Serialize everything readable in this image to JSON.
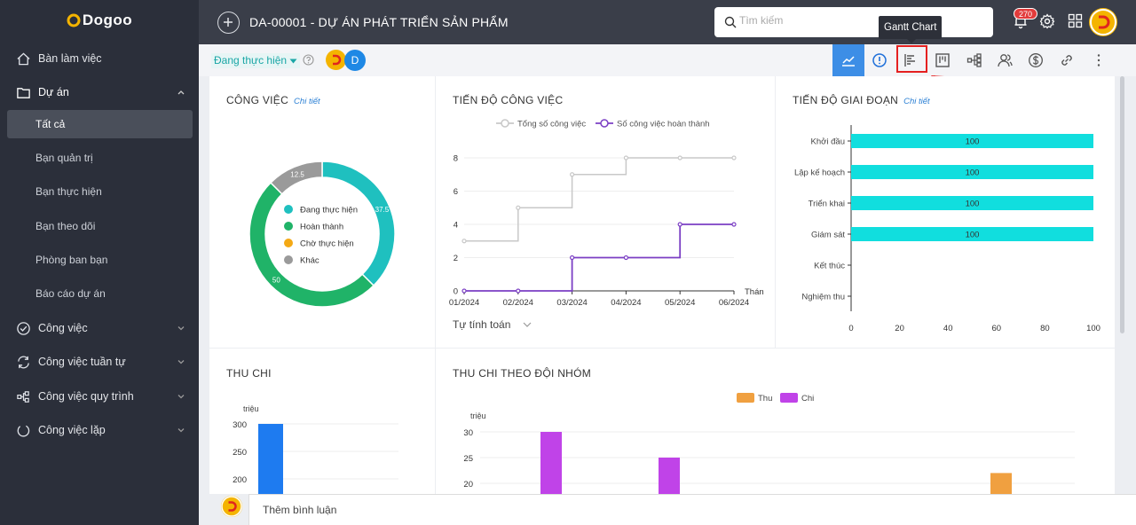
{
  "app": {
    "logo": "Dogoo"
  },
  "sidebar": {
    "items": [
      {
        "label": "Bàn làm việc",
        "icon": "home-icon"
      },
      {
        "label": "Dự án",
        "icon": "folder-icon"
      },
      {
        "label": "Công việc",
        "icon": "check-circle-icon"
      },
      {
        "label": "Công việc tuần tự",
        "icon": "sync-icon"
      },
      {
        "label": "Công việc quy trình",
        "icon": "workflow-icon"
      },
      {
        "label": "Công việc lặp",
        "icon": "loop-icon"
      }
    ],
    "project_sub": [
      "Tất cả",
      "Bạn quản trị",
      "Bạn thực hiện",
      "Bạn theo dõi",
      "Phòng ban bạn",
      "Báo cáo dự án"
    ]
  },
  "header": {
    "title": "DA-00001 - DỰ ÁN PHÁT TRIỂN SẢN PHẨM",
    "search_placeholder": "Tìm kiếm",
    "notification_count": "270"
  },
  "toolbar": {
    "status": "Đang thực hiện",
    "member_initial": "D",
    "tooltip": "Gantt Chart",
    "buttons": [
      "chart-line-icon",
      "info-icon",
      "gantt-icon",
      "kanban-icon",
      "tree-icon",
      "users-icon",
      "dollar-icon",
      "link-icon",
      "more-icon"
    ],
    "active_color": "#3d8ee6"
  },
  "cards": {
    "cong_viec": {
      "title": "CÔNG VIỆC",
      "link": "Chi tiết"
    },
    "tien_do_cv": {
      "title": "TIẾN ĐỘ CÔNG VIỆC",
      "dropdown": "Tự tính toán"
    },
    "tien_do_gd": {
      "title": "TIẾN ĐỘ GIAI ĐOẠN",
      "link": "Chi tiết"
    },
    "thu_chi": {
      "title": "THU CHI"
    },
    "thu_chi_nhom": {
      "title": "THU CHI THEO ĐỘI NHÓM"
    }
  },
  "comment": {
    "placeholder": "Thêm bình luận"
  },
  "chart_data": [
    {
      "type": "pie",
      "name": "cong-viec-donut",
      "labels": [
        "Đang thực hiện",
        "Hoàn thành",
        "Chờ thực hiện",
        "Khác"
      ],
      "values": [
        37.5,
        50,
        0,
        12.5
      ],
      "data_labels": [
        "37.5",
        "50",
        "",
        "12.5"
      ],
      "colors": [
        "#1fc0bf",
        "#20b368",
        "#f4a915",
        "#9a9a9a"
      ],
      "legend": "center"
    },
    {
      "type": "line",
      "name": "tien-do-cong-viec",
      "x": [
        "01/2024",
        "02/2024",
        "03/2024",
        "04/2024",
        "05/2024",
        "06/2024"
      ],
      "xlabel": "Thán",
      "series": [
        {
          "name": "Tổng số công việc",
          "values": [
            3,
            5,
            7,
            8,
            8,
            8
          ],
          "color": "#c8c8c8"
        },
        {
          "name": "Số công việc hoàn thành",
          "values": [
            0,
            0,
            2,
            2,
            4,
            4
          ],
          "color": "#7b3fc4"
        }
      ],
      "yticks": [
        "0",
        "2",
        "4",
        "6",
        "8"
      ],
      "ylim": [
        0,
        8
      ],
      "step": true,
      "legend": "top-center"
    },
    {
      "type": "bar",
      "orientation": "horizontal",
      "name": "tien-do-giai-doan",
      "categories": [
        "Khởi đầu",
        "Lập kế hoạch",
        "Triển khai",
        "Giám sát",
        "Kết thúc",
        "Nghiệm thu"
      ],
      "values": [
        100,
        100,
        100,
        100,
        null,
        null
      ],
      "data_labels": [
        "100",
        "100",
        "100",
        "100",
        "",
        ""
      ],
      "xticks": [
        "0",
        "20",
        "40",
        "60",
        "80",
        "100"
      ],
      "xlim": [
        0,
        100
      ],
      "color": "#11dede"
    },
    {
      "type": "bar",
      "name": "thu-chi",
      "ylabel": "triệu",
      "yticks": [
        "200",
        "250",
        "300"
      ],
      "values": [
        300
      ],
      "color": "#1e7bf0"
    },
    {
      "type": "bar",
      "name": "thu-chi-theo-doi-nhom",
      "ylabel": "triệu",
      "yticks": [
        "20",
        "25",
        "30"
      ],
      "series": [
        {
          "name": "Thu",
          "values": [
            null,
            null,
            null,
            22
          ],
          "color": "#f0a040"
        },
        {
          "name": "Chi",
          "values": [
            30,
            25,
            null,
            null
          ],
          "color": "#c043e8"
        }
      ],
      "legend": "top-center"
    }
  ]
}
